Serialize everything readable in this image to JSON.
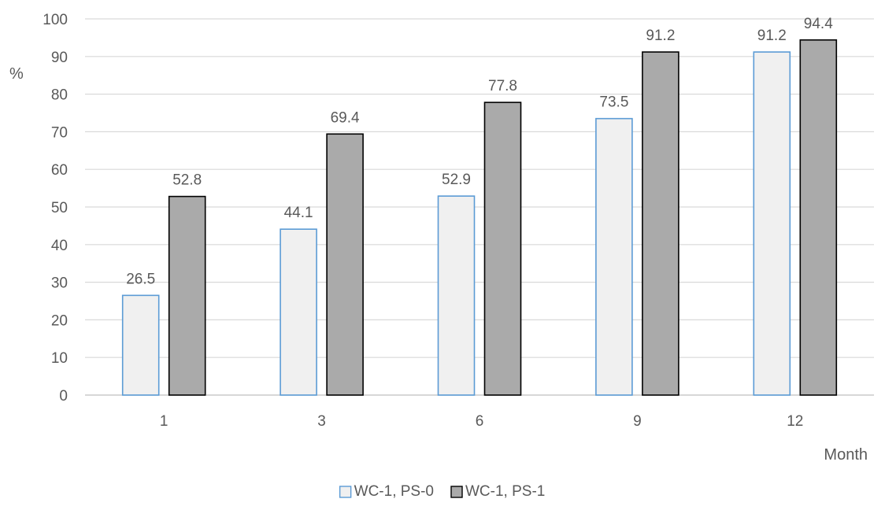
{
  "chart_data": {
    "type": "bar",
    "categories": [
      "1",
      "3",
      "6",
      "9",
      "12"
    ],
    "series": [
      {
        "name": "WC-1, PS-0",
        "values": [
          26.5,
          44.1,
          52.9,
          73.5,
          91.2
        ],
        "color": "#f0f0f0",
        "stroke": "#5b9bd5"
      },
      {
        "name": "WC-1, PS-1",
        "values": [
          52.8,
          69.4,
          77.8,
          91.2,
          94.4
        ],
        "color": "#aaaaaa",
        "stroke": "#000000"
      }
    ],
    "title": "",
    "xlabel": "Month",
    "ylabel": "%",
    "ylim": [
      0,
      100
    ],
    "yticks": [
      0,
      10,
      20,
      30,
      40,
      50,
      60,
      70,
      80,
      90,
      100
    ],
    "grid": true,
    "legend_position": "bottom"
  }
}
